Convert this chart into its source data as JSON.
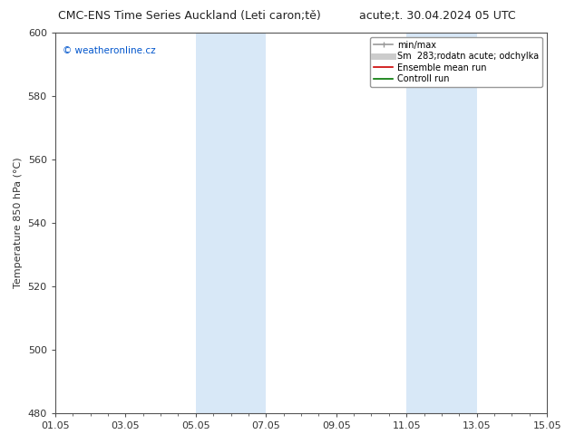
{
  "title_left": "CMC-ENS Time Series Auckland (Leti caron;tě)",
  "title_right": "acute;t. 30.04.2024 05 UTC",
  "ylabel": "Temperature 850 hPa (°C)",
  "watermark": "© weatheronline.cz",
  "xlim_dates": [
    "01.05",
    "03.05",
    "05.05",
    "07.05",
    "09.05",
    "11.05",
    "13.05",
    "15.05"
  ],
  "ylim": [
    480,
    600
  ],
  "yticks": [
    480,
    500,
    520,
    540,
    560,
    580,
    600
  ],
  "xticks_pos": [
    0,
    2,
    4,
    6,
    8,
    10,
    12,
    14
  ],
  "shaded_regions": [
    {
      "xstart": 4,
      "xend": 6,
      "color": "#d8e8f7"
    },
    {
      "xstart": 10,
      "xend": 12,
      "color": "#d8e8f7"
    }
  ],
  "legend_items": [
    {
      "label": "min/max",
      "color": "#999999",
      "lw": 1.2,
      "linestyle": "-"
    },
    {
      "label": "Sm  283;rodatn acute; odchylka",
      "color": "#cccccc",
      "lw": 5,
      "linestyle": "-"
    },
    {
      "label": "Ensemble mean run",
      "color": "#cc0000",
      "lw": 1.2,
      "linestyle": "-"
    },
    {
      "label": "Controll run",
      "color": "#007700",
      "lw": 1.2,
      "linestyle": "-"
    }
  ],
  "bg_color": "#ffffff",
  "plot_bg_color": "#ffffff",
  "title_fontsize": 9,
  "tick_fontsize": 8,
  "ylabel_fontsize": 8,
  "watermark_color": "#0055cc"
}
